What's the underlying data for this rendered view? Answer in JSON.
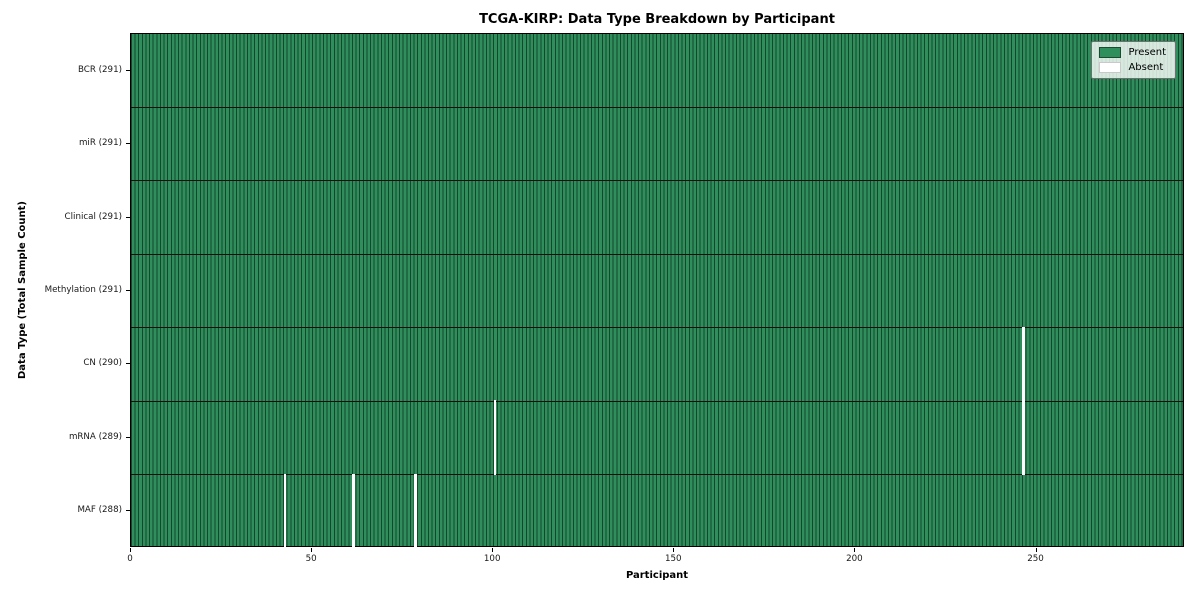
{
  "chart_data": {
    "type": "heatmap",
    "title": "TCGA-KIRP: Data Type Breakdown by Participant",
    "xlabel": "Participant",
    "ylabel": "Data Type (Total Sample Count)",
    "n_participants": 291,
    "x_range": [
      0,
      291
    ],
    "x_ticks": [
      0,
      50,
      100,
      150,
      200,
      250
    ],
    "grid": "cell-edges-only",
    "rows": [
      {
        "label": "BCR (291)",
        "data_type": "BCR",
        "present_count": 291,
        "absent_participants": []
      },
      {
        "label": "miR (291)",
        "data_type": "miR",
        "present_count": 291,
        "absent_participants": []
      },
      {
        "label": "Clinical (291)",
        "data_type": "Clinical",
        "present_count": 291,
        "absent_participants": []
      },
      {
        "label": "Methylation (291)",
        "data_type": "Methylation",
        "present_count": 291,
        "absent_participants": []
      },
      {
        "label": "CN (290)",
        "data_type": "CN",
        "present_count": 290,
        "absent_participants": [
          246
        ]
      },
      {
        "label": "mRNA (289)",
        "data_type": "mRNA",
        "present_count": 289,
        "absent_participants": [
          100,
          246
        ]
      },
      {
        "label": "MAF (288)",
        "data_type": "MAF",
        "present_count": 288,
        "absent_participants": [
          42,
          61,
          78
        ]
      }
    ],
    "legend": {
      "position": "upper right",
      "items": [
        {
          "label": "Present",
          "color": "#2e8f5c"
        },
        {
          "label": "Absent",
          "color": "#ffffff"
        }
      ]
    },
    "colors": {
      "present_fill": "#2e8f5c",
      "cell_edge": "#17462b",
      "absent_fill": "#ffffff",
      "row_separator": "#101010",
      "axis_spine": "#000000"
    }
  }
}
